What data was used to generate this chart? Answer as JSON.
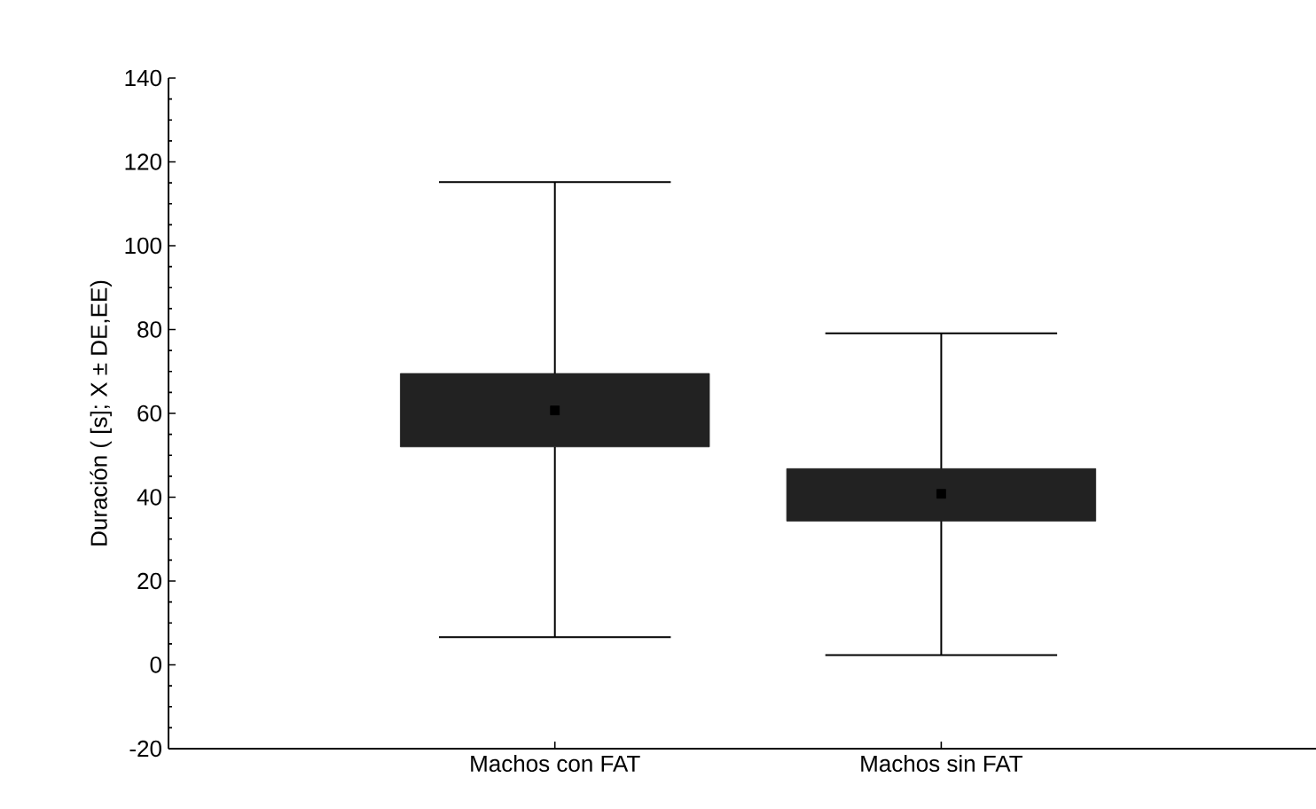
{
  "chart_data": {
    "type": "box",
    "ylabel": "Duración ( [s]; X ± DE,EE)",
    "categories": [
      "Machos con FAT",
      "Machos sin FAT"
    ],
    "boxes": [
      {
        "low": 6.6,
        "q1": 52.0,
        "median": 60.7,
        "q3": 69.5,
        "high": 115.2
      },
      {
        "low": 2.3,
        "q1": 34.3,
        "median": 40.8,
        "q3": 46.8,
        "high": 79.1
      }
    ],
    "color": "#222222",
    "ylim": [
      -20,
      140
    ],
    "yticks": [
      -20,
      0,
      20,
      40,
      60,
      80,
      100,
      120,
      140
    ],
    "grid": false
  }
}
